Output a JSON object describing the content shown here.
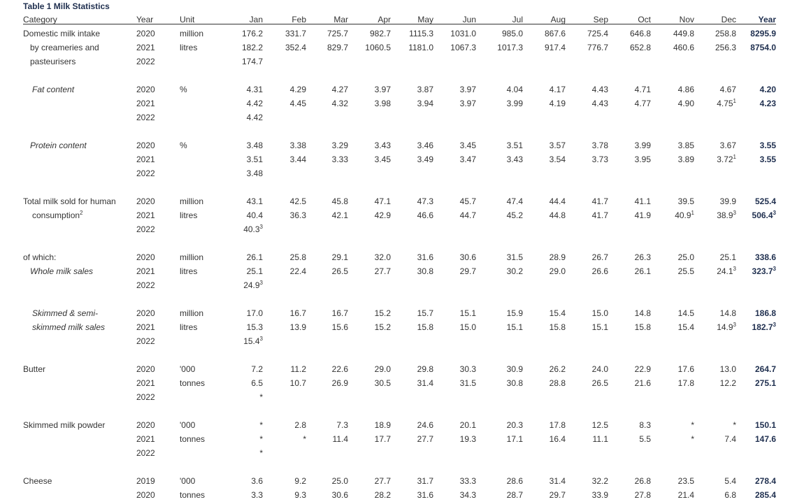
{
  "title": "Table 1  Milk Statistics",
  "headers": {
    "category": "Category",
    "year": "Year",
    "unit": "Unit",
    "months": [
      "Jan",
      "Feb",
      "Mar",
      "Apr",
      "May",
      "Jun",
      "Jul",
      "Aug",
      "Sep",
      "Oct",
      "Nov",
      "Dec"
    ],
    "total": "Year"
  },
  "sections": [
    {
      "label_lines": [
        "Domestic milk intake",
        "by creameries and",
        "pasteurisers"
      ],
      "italic": false,
      "unit_lines": [
        "million",
        "litres"
      ],
      "rows": [
        {
          "year": "2020",
          "vals": [
            "176.2",
            "331.7",
            "725.7",
            "982.7",
            "1115.3",
            "1031.0",
            "985.0",
            "867.6",
            "725.4",
            "646.8",
            "449.8",
            "258.8"
          ],
          "total": "8295.9"
        },
        {
          "year": "2021",
          "vals": [
            "182.2",
            "352.4",
            "829.7",
            "1060.5",
            "1181.0",
            "1067.3",
            "1017.3",
            "917.4",
            "776.7",
            "652.8",
            "460.6",
            "256.3"
          ],
          "total": "8754.0"
        },
        {
          "year": "2022",
          "vals": [
            "174.7",
            "",
            "",
            "",
            "",
            "",
            "",
            "",
            "",
            "",
            "",
            ""
          ],
          "total": ""
        }
      ]
    },
    {
      "label_lines": [
        "Fat content"
      ],
      "italic": true,
      "unit_lines": [
        "%"
      ],
      "rows": [
        {
          "year": "2020",
          "vals": [
            "4.31",
            "4.29",
            "4.27",
            "3.97",
            "3.87",
            "3.97",
            "4.04",
            "4.17",
            "4.43",
            "4.71",
            "4.86",
            "4.67"
          ],
          "total": "4.20"
        },
        {
          "year": "2021",
          "vals": [
            "4.42",
            "4.45",
            "4.32",
            "3.98",
            "3.94",
            "3.97",
            "3.99",
            "4.19",
            "4.43",
            "4.77",
            "4.90",
            "4.75 ¹"
          ],
          "total": "4.23"
        },
        {
          "year": "2022",
          "vals": [
            "4.42",
            "",
            "",
            "",
            "",
            "",
            "",
            "",
            "",
            "",
            "",
            ""
          ],
          "total": ""
        }
      ]
    },
    {
      "label_lines": [
        "Protein content"
      ],
      "italic": true,
      "unit_lines": [
        "%"
      ],
      "rows": [
        {
          "year": "2020",
          "vals": [
            "3.48",
            "3.38",
            "3.29",
            "3.43",
            "3.46",
            "3.45",
            "3.51",
            "3.57",
            "3.78",
            "3.99",
            "3.85",
            "3.67"
          ],
          "total": "3.55"
        },
        {
          "year": "2021",
          "vals": [
            "3.51",
            "3.44",
            "3.33",
            "3.45",
            "3.49",
            "3.47",
            "3.43",
            "3.54",
            "3.73",
            "3.95",
            "3.89",
            "3.72 ¹"
          ],
          "total": "3.55"
        },
        {
          "year": "2022",
          "vals": [
            "3.48",
            "",
            "",
            "",
            "",
            "",
            "",
            "",
            "",
            "",
            "",
            ""
          ],
          "total": ""
        }
      ]
    },
    {
      "label_lines": [
        "Total milk sold for human",
        "consumption ²"
      ],
      "italic": false,
      "unit_lines": [
        "million",
        "litres"
      ],
      "rows": [
        {
          "year": "2020",
          "vals": [
            "43.1",
            "42.5",
            "45.8",
            "47.1",
            "47.3",
            "45.7",
            "47.4",
            "44.4",
            "41.7",
            "41.1",
            "39.5",
            "39.9"
          ],
          "total": "525.4"
        },
        {
          "year": "2021",
          "vals": [
            "40.4",
            "36.3",
            "42.1",
            "42.9",
            "46.6",
            "44.7",
            "45.2",
            "44.8",
            "41.7",
            "41.9",
            "40.9 ¹",
            "38.9 ³"
          ],
          "total": "506.4 ³"
        },
        {
          "year": "2022",
          "vals": [
            "40.3 ³",
            "",
            "",
            "",
            "",
            "",
            "",
            "",
            "",
            "",
            "",
            ""
          ],
          "total": ""
        }
      ]
    },
    {
      "label_lines": [
        "of which:",
        "Whole milk sales"
      ],
      "italic": false,
      "italic_lines": [
        1
      ],
      "unit_lines": [
        "million",
        "litres"
      ],
      "rows": [
        {
          "year": "2020",
          "vals": [
            "26.1",
            "25.8",
            "29.1",
            "32.0",
            "31.6",
            "30.6",
            "31.5",
            "28.9",
            "26.7",
            "26.3",
            "25.0",
            "25.1"
          ],
          "total": "338.6"
        },
        {
          "year": "2021",
          "vals": [
            "25.1",
            "22.4",
            "26.5",
            "27.7",
            "30.8",
            "29.7",
            "30.2",
            "29.0",
            "26.6",
            "26.1",
            "25.5",
            "24.1 ³"
          ],
          "total": "323.7 ³"
        },
        {
          "year": "2022",
          "vals": [
            "24.9 ³",
            "",
            "",
            "",
            "",
            "",
            "",
            "",
            "",
            "",
            "",
            ""
          ],
          "total": ""
        }
      ]
    },
    {
      "label_lines": [
        "Skimmed  & semi-",
        "skimmed milk sales"
      ],
      "italic": true,
      "unit_lines": [
        "million",
        "litres"
      ],
      "rows": [
        {
          "year": "2020",
          "vals": [
            "17.0",
            "16.7",
            "16.7",
            "15.2",
            "15.7",
            "15.1",
            "15.9",
            "15.4",
            "15.0",
            "14.8",
            "14.5",
            "14.8"
          ],
          "total": "186.8"
        },
        {
          "year": "2021",
          "vals": [
            "15.3",
            "13.9",
            "15.6",
            "15.2",
            "15.8",
            "15.0",
            "15.1",
            "15.8",
            "15.1",
            "15.8",
            "15.4",
            "14.9 ³"
          ],
          "total": "182.7 ³"
        },
        {
          "year": "2022",
          "vals": [
            "15.4 ³",
            "",
            "",
            "",
            "",
            "",
            "",
            "",
            "",
            "",
            "",
            ""
          ],
          "total": ""
        }
      ]
    },
    {
      "label_lines": [
        "Butter"
      ],
      "italic": false,
      "unit_lines": [
        "'000",
        "tonnes"
      ],
      "rows": [
        {
          "year": "2020",
          "vals": [
            "7.2",
            "11.2",
            "22.6",
            "29.0",
            "29.8",
            "30.3",
            "30.9",
            "26.2",
            "24.0",
            "22.9",
            "17.6",
            "13.0"
          ],
          "total": "264.7"
        },
        {
          "year": "2021",
          "vals": [
            "6.5",
            "10.7",
            "26.9",
            "30.5",
            "31.4",
            "31.5",
            "30.8",
            "28.8",
            "26.5",
            "21.6",
            "17.8",
            "12.2"
          ],
          "total": "275.1"
        },
        {
          "year": "2022",
          "vals": [
            "*",
            "",
            "",
            "",
            "",
            "",
            "",
            "",
            "",
            "",
            "",
            ""
          ],
          "total": ""
        }
      ]
    },
    {
      "label_lines": [
        "Skimmed milk powder"
      ],
      "italic": false,
      "unit_lines": [
        "'000",
        "tonnes"
      ],
      "rows": [
        {
          "year": "2020",
          "vals": [
            "*",
            "2.8",
            "7.3",
            "18.9",
            "24.6",
            "20.1",
            "20.3",
            "17.8",
            "12.5",
            "8.3",
            "*",
            "*"
          ],
          "total": "150.1"
        },
        {
          "year": "2021",
          "vals": [
            "*",
            "*",
            "11.4",
            "17.7",
            "27.7",
            "19.3",
            "17.1",
            "16.4",
            "11.1",
            "5.5",
            "*",
            "7.4"
          ],
          "total": "147.6"
        },
        {
          "year": "2022",
          "vals": [
            "*",
            "",
            "",
            "",
            "",
            "",
            "",
            "",
            "",
            "",
            "",
            ""
          ],
          "total": ""
        }
      ]
    },
    {
      "label_lines": [
        "Cheese"
      ],
      "italic": false,
      "unit_lines": [
        "'000",
        "tonnes"
      ],
      "rows": [
        {
          "year": "2019",
          "vals": [
            "3.6",
            "9.2",
            "25.0",
            "27.7",
            "31.7",
            "33.3",
            "28.6",
            "31.4",
            "32.2",
            "26.8",
            "23.5",
            "5.4"
          ],
          "total": "278.4"
        },
        {
          "year": "2020",
          "vals": [
            "3.3",
            "9.3",
            "30.6",
            "28.2",
            "31.6",
            "34.3",
            "28.7",
            "29.7",
            "33.9",
            "27.8",
            "21.4",
            "6.8"
          ],
          "total": "285.4"
        }
      ]
    }
  ]
}
